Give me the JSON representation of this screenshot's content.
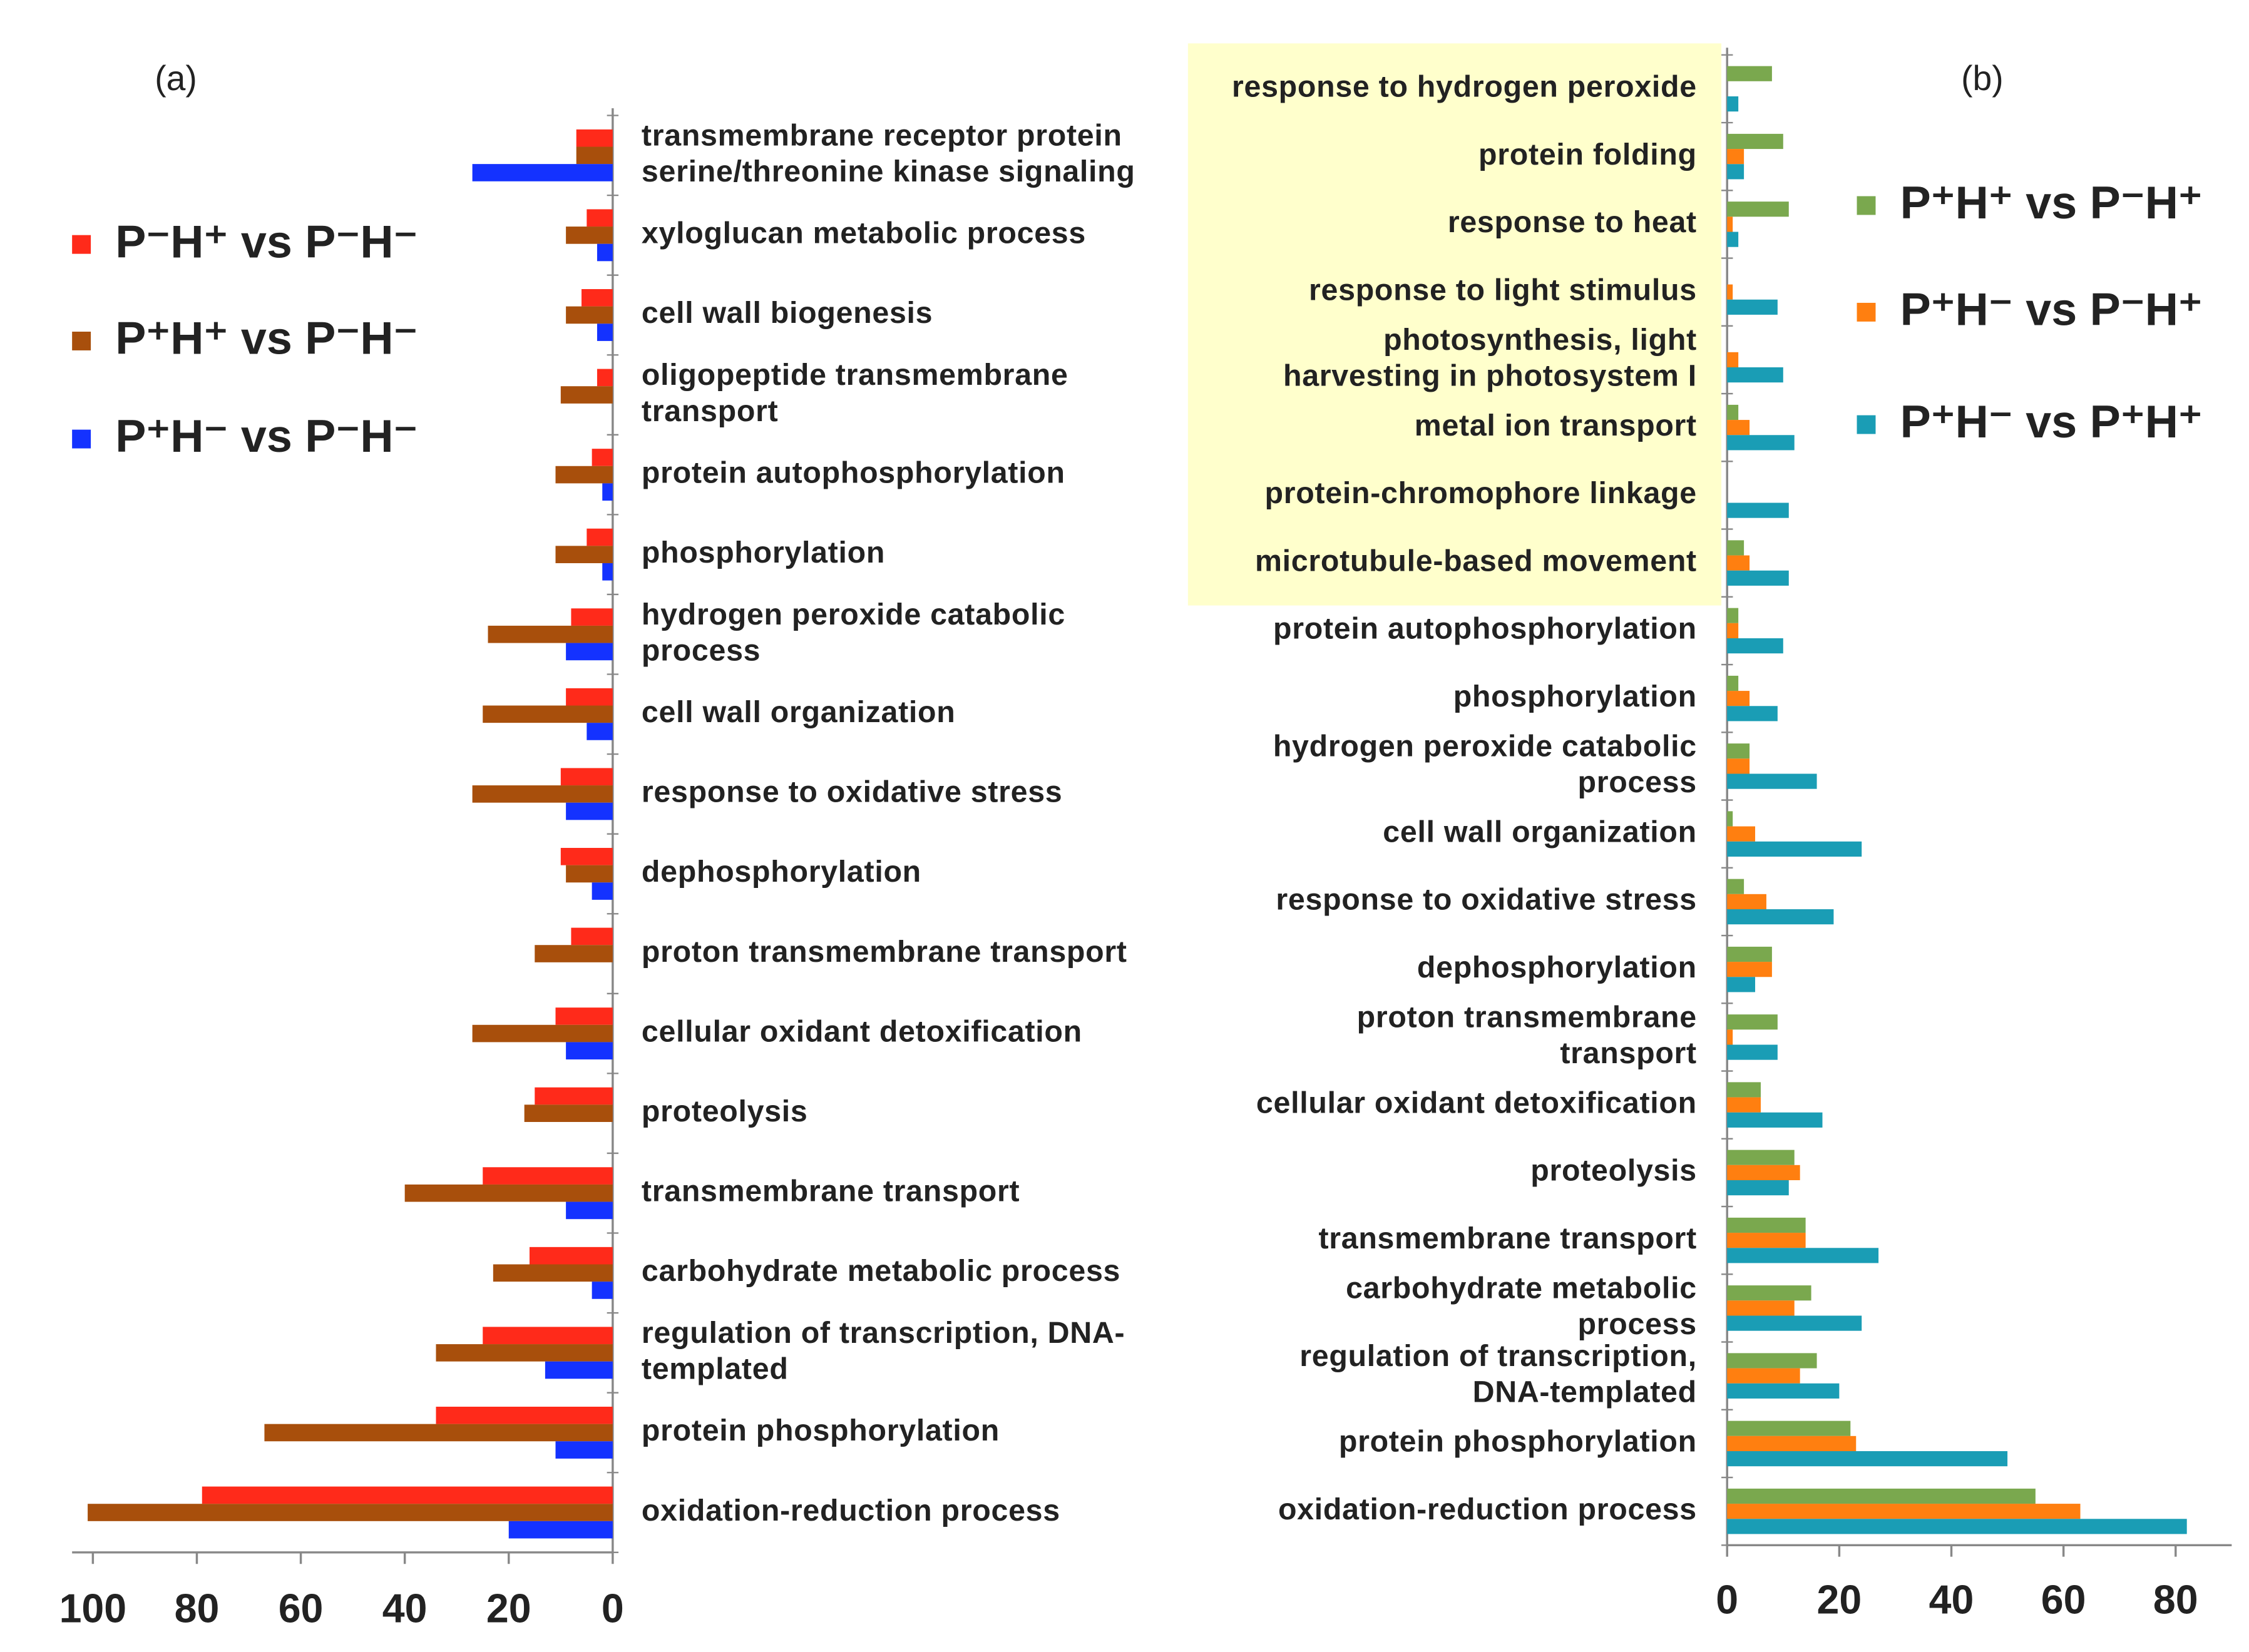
{
  "chart_data": [
    {
      "type": "bar",
      "orientation": "horizontal",
      "title": "(a)",
      "x_reversed": true,
      "label_side": "right",
      "xlim": [
        0,
        104
      ],
      "xticks": [
        0,
        20,
        40,
        60,
        80,
        100
      ],
      "categories": [
        "transmembrane receptor protein\nserine/threonine kinase signaling",
        "xyloglucan metabolic process",
        "cell wall biogenesis",
        "oligopeptide transmembrane\ntransport",
        "protein autophosphorylation",
        "phosphorylation",
        "hydrogen peroxide catabolic\nprocess",
        "cell wall organization",
        "response to oxidative stress",
        "dephosphorylation",
        "proton transmembrane transport",
        "cellular oxidant detoxification",
        "proteolysis",
        "transmembrane transport",
        "carbohydrate metabolic process",
        "regulation of transcription, DNA-\ntemplated",
        "protein phosphorylation",
        "oxidation-reduction process"
      ],
      "series": [
        {
          "name": "P⁻H⁺ vs P⁻H⁻",
          "color": "#ff2a1a",
          "values": [
            7,
            5,
            6,
            3,
            4,
            5,
            8,
            9,
            10,
            10,
            8,
            11,
            15,
            25,
            16,
            25,
            34,
            79
          ]
        },
        {
          "name": "P⁺H⁺ vs P⁻H⁻",
          "color": "#a84f0c",
          "values": [
            7,
            9,
            9,
            10,
            11,
            11,
            24,
            25,
            27,
            9,
            15,
            27,
            17,
            40,
            23,
            34,
            67,
            101
          ]
        },
        {
          "name": "P⁺H⁻ vs P⁻H⁻",
          "color": "#1432ff",
          "values": [
            27,
            3,
            3,
            0,
            2,
            2,
            9,
            5,
            9,
            4,
            0,
            9,
            0,
            9,
            4,
            13,
            11,
            20
          ]
        }
      ]
    },
    {
      "type": "bar",
      "orientation": "horizontal",
      "title": "(b)",
      "x_reversed": false,
      "label_side": "left",
      "xlim": [
        0,
        90
      ],
      "xticks": [
        0,
        20,
        40,
        60,
        80
      ],
      "categories": [
        "response to hydrogen peroxide",
        "protein folding",
        "response to heat",
        "response to light stimulus",
        "photosynthesis, light\nharvesting in photosystem I",
        "metal ion transport",
        "protein-chromophore linkage",
        "microtubule-based movement",
        "protein autophosphorylation",
        "phosphorylation",
        "hydrogen peroxide catabolic\nprocess",
        "cell wall organization",
        "response to oxidative stress",
        "dephosphorylation",
        "proton transmembrane\ntransport",
        "cellular oxidant detoxification",
        "proteolysis",
        "transmembrane transport",
        "carbohydrate metabolic\nprocess",
        "regulation of transcription,\nDNA-templated",
        "protein phosphorylation",
        "oxidation-reduction process"
      ],
      "series": [
        {
          "name": "P⁺H⁺ vs P⁻H⁺",
          "color": "#7aa84e",
          "values": [
            8,
            10,
            11,
            0,
            0,
            2,
            0,
            3,
            2,
            2,
            4,
            1,
            3,
            8,
            9,
            6,
            12,
            14,
            15,
            16,
            22,
            55
          ]
        },
        {
          "name": "P⁺H⁻ vs P⁻H⁺",
          "color": "#ff7f10",
          "values": [
            0,
            3,
            1,
            1,
            2,
            4,
            0,
            4,
            2,
            4,
            4,
            5,
            7,
            8,
            1,
            6,
            13,
            14,
            12,
            13,
            23,
            63
          ]
        },
        {
          "name": "P⁺H⁻ vs P⁺H⁺",
          "color": "#1a9db5",
          "values": [
            2,
            3,
            2,
            9,
            10,
            12,
            11,
            11,
            10,
            9,
            16,
            24,
            19,
            5,
            9,
            17,
            11,
            27,
            24,
            20,
            50,
            82
          ]
        }
      ]
    }
  ]
}
